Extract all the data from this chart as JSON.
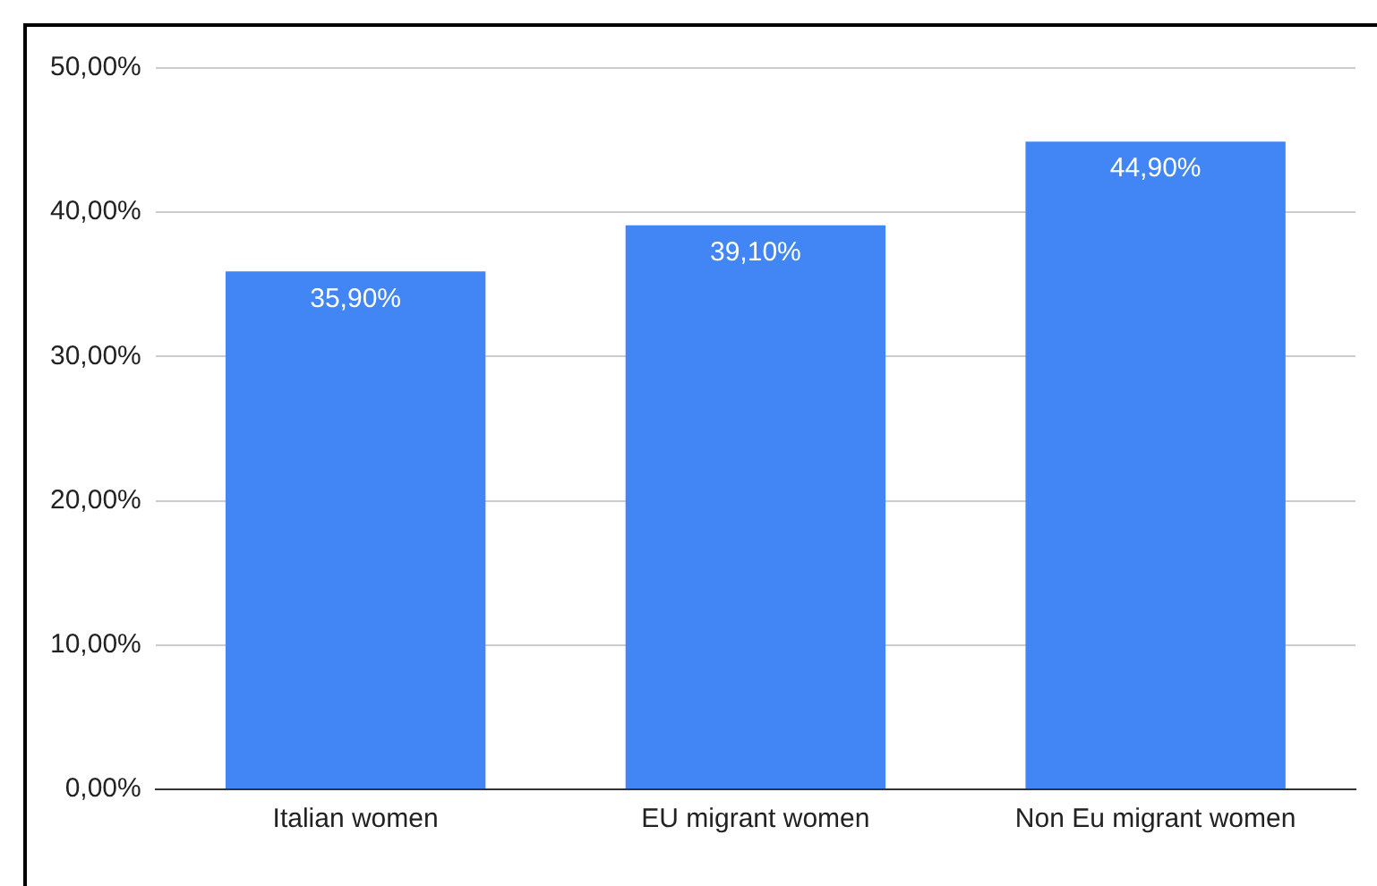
{
  "chart_data": {
    "type": "bar",
    "categories": [
      "Italian women",
      "EU migrant women",
      "Non Eu migrant women"
    ],
    "values": [
      35.9,
      39.1,
      44.9
    ],
    "value_labels": [
      "35,90%",
      "39,10%",
      "44,90%"
    ],
    "color": "#4285f4",
    "ylim": [
      0,
      50
    ],
    "yticks": [
      {
        "value": 0,
        "label": "0,00%"
      },
      {
        "value": 10,
        "label": "10,00%"
      },
      {
        "value": 20,
        "label": "20,00%"
      },
      {
        "value": 30,
        "label": "30,00%"
      },
      {
        "value": 40,
        "label": "40,00%"
      },
      {
        "value": 50,
        "label": "50,00%"
      }
    ],
    "grid": "y",
    "legend": false
  }
}
